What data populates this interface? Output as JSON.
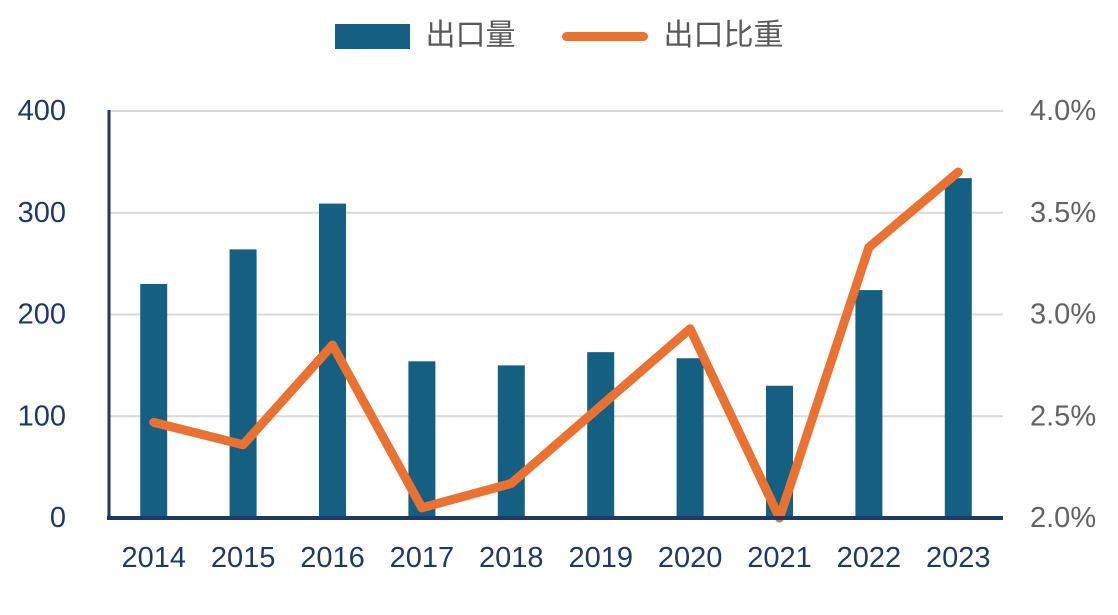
{
  "chart_data": {
    "type": "bar",
    "title": "",
    "categories": [
      "2014",
      "2015",
      "2016",
      "2017",
      "2018",
      "2019",
      "2020",
      "2021",
      "2022",
      "2023"
    ],
    "series": [
      {
        "name": "出口量",
        "type": "bar",
        "axis": "left",
        "values": [
          230,
          264,
          309,
          154,
          150,
          163,
          157,
          130,
          224,
          334
        ]
      },
      {
        "name": "出口比重",
        "type": "line",
        "axis": "right",
        "values": [
          2.47,
          2.36,
          2.85,
          2.05,
          2.17,
          2.55,
          2.93,
          2.0,
          3.33,
          3.7
        ]
      }
    ],
    "left_axis": {
      "min": 0,
      "max": 400,
      "ticks": [
        0,
        100,
        200,
        300,
        400
      ],
      "tick_labels": [
        "0",
        "100",
        "200",
        "300",
        "400"
      ]
    },
    "right_axis": {
      "min": 2.0,
      "max": 4.0,
      "ticks": [
        2.0,
        2.5,
        3.0,
        3.5,
        4.0
      ],
      "tick_labels": [
        "2.0%",
        "2.5%",
        "3.0%",
        "3.5%",
        "4.0%"
      ]
    },
    "legend_position": "top-center",
    "grid": true
  },
  "colors": {
    "bar": "#156082",
    "line": "#E97132",
    "axis_line": "#1F3864",
    "left_axis_text": "#1F3864",
    "x_axis_text": "#1F3864",
    "right_axis_text": "#636363",
    "legend_text": "#595959",
    "gridline": "#D9D9D9",
    "background": "#FFFFFF"
  }
}
